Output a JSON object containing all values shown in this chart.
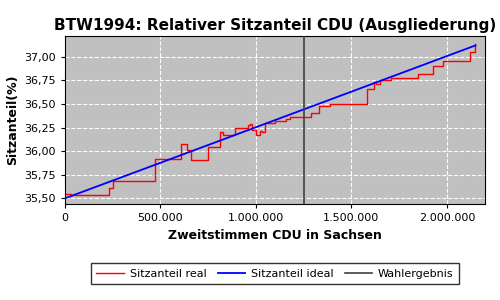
{
  "title": "BTW1994: Relativer Sitzanteil CDU (Ausgliederung)",
  "xlabel": "Zweitstimmen CDU in Sachsen",
  "ylabel": "Sitzanteil(%)",
  "xlim": [
    0,
    2200000
  ],
  "ylim": [
    35.44,
    37.22
  ],
  "yticks": [
    35.5,
    35.75,
    36.0,
    36.25,
    36.5,
    36.75,
    37.0
  ],
  "xticks": [
    0,
    500000,
    1000000,
    1500000,
    2000000
  ],
  "xtick_labels": [
    "0",
    "500.000",
    "1.000.000",
    "1.500.000",
    "2.000.000"
  ],
  "ytick_labels": [
    "35,50",
    "35,75",
    "36,00",
    "36,25",
    "36,50",
    "36,75",
    "37,00"
  ],
  "wahlergebnis_x": 1250000,
  "x_start": 0,
  "x_end": 2150000,
  "y_start": 35.5,
  "y_end": 37.12,
  "color_real": "#ff0000",
  "color_ideal": "#0000ff",
  "color_wahlergebnis": "#404040",
  "bg_color": "#c0c0c0",
  "legend_labels": [
    "Sitzanteil real",
    "Sitzanteil ideal",
    "Wahlergebnis"
  ],
  "title_fontsize": 11,
  "label_fontsize": 9,
  "tick_fontsize": 8,
  "legend_fontsize": 8,
  "n_steps": 35,
  "step_noise_seed": 7
}
